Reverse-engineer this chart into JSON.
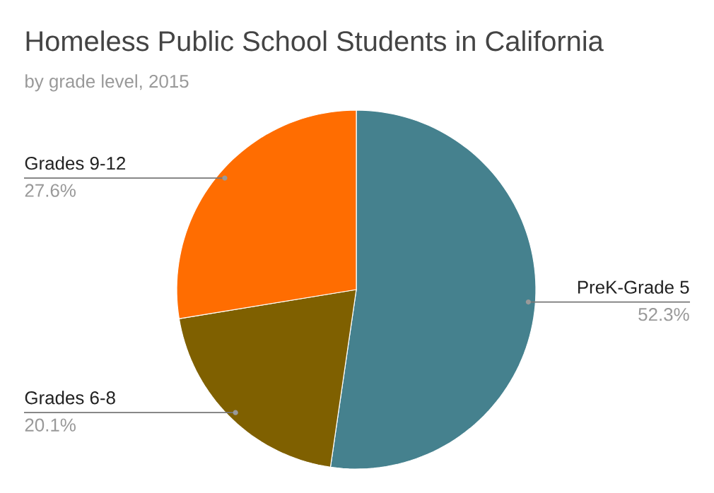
{
  "chart_data": {
    "type": "pie",
    "title": "Homeless Public School Students in California",
    "subtitle": "by grade level, 2015",
    "categories": [
      "PreK-Grade 5",
      "Grades 6-8",
      "Grades 9-12"
    ],
    "values": [
      52.3,
      20.1,
      27.6
    ],
    "value_labels": [
      "52.3%",
      "20.1%",
      "27.6%"
    ],
    "colors": [
      "#45818e",
      "#7f6000",
      "#ff6d01"
    ]
  }
}
